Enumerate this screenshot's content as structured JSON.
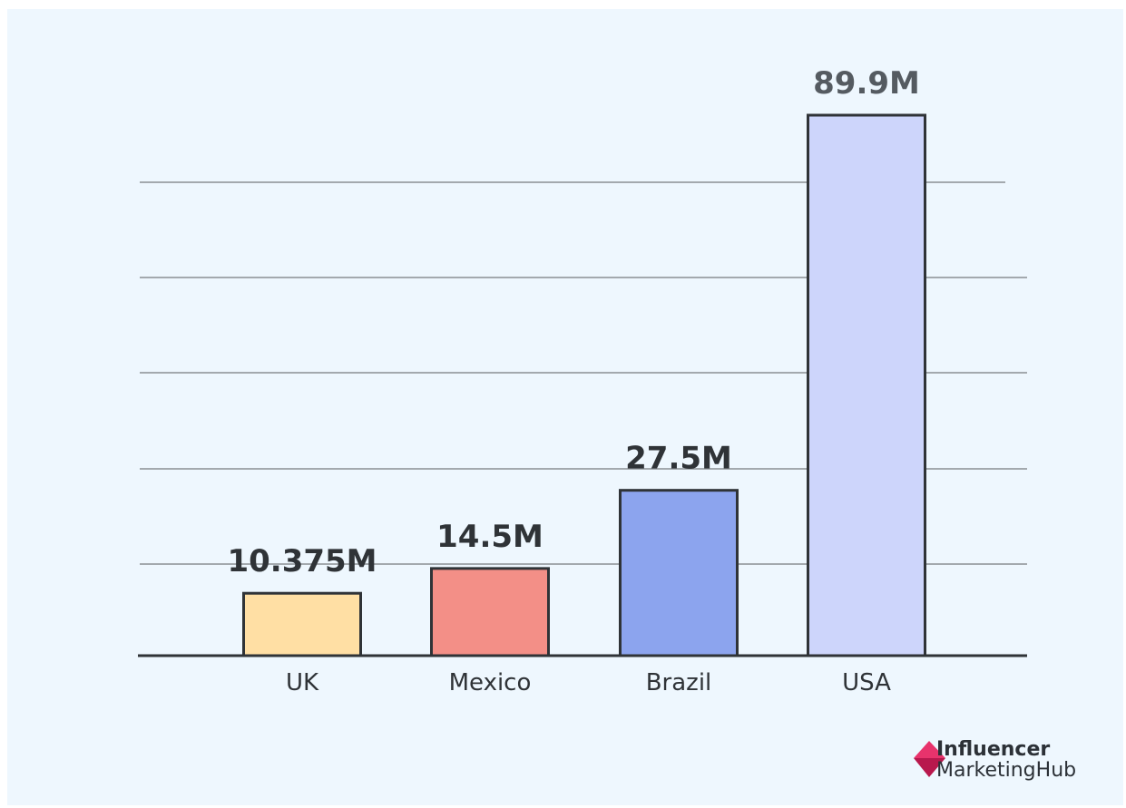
{
  "chart_data": {
    "type": "bar",
    "categories": [
      "UK",
      "Mexico",
      "Brazil",
      "USA"
    ],
    "values": [
      10.375,
      14.5,
      27.5,
      89.9
    ],
    "value_labels": [
      "10.375M",
      "14.5M",
      "27.5M",
      "89.9M"
    ],
    "unit": "M",
    "colors": [
      "#ffdfa4",
      "#f38f87",
      "#8ca4ee",
      "#cdd5fb"
    ],
    "grid": true,
    "title": "",
    "xlabel": "",
    "ylabel": ""
  },
  "brand": {
    "line1": "Influencer",
    "line2": "MarketingHub",
    "accent": "#e8336c"
  }
}
